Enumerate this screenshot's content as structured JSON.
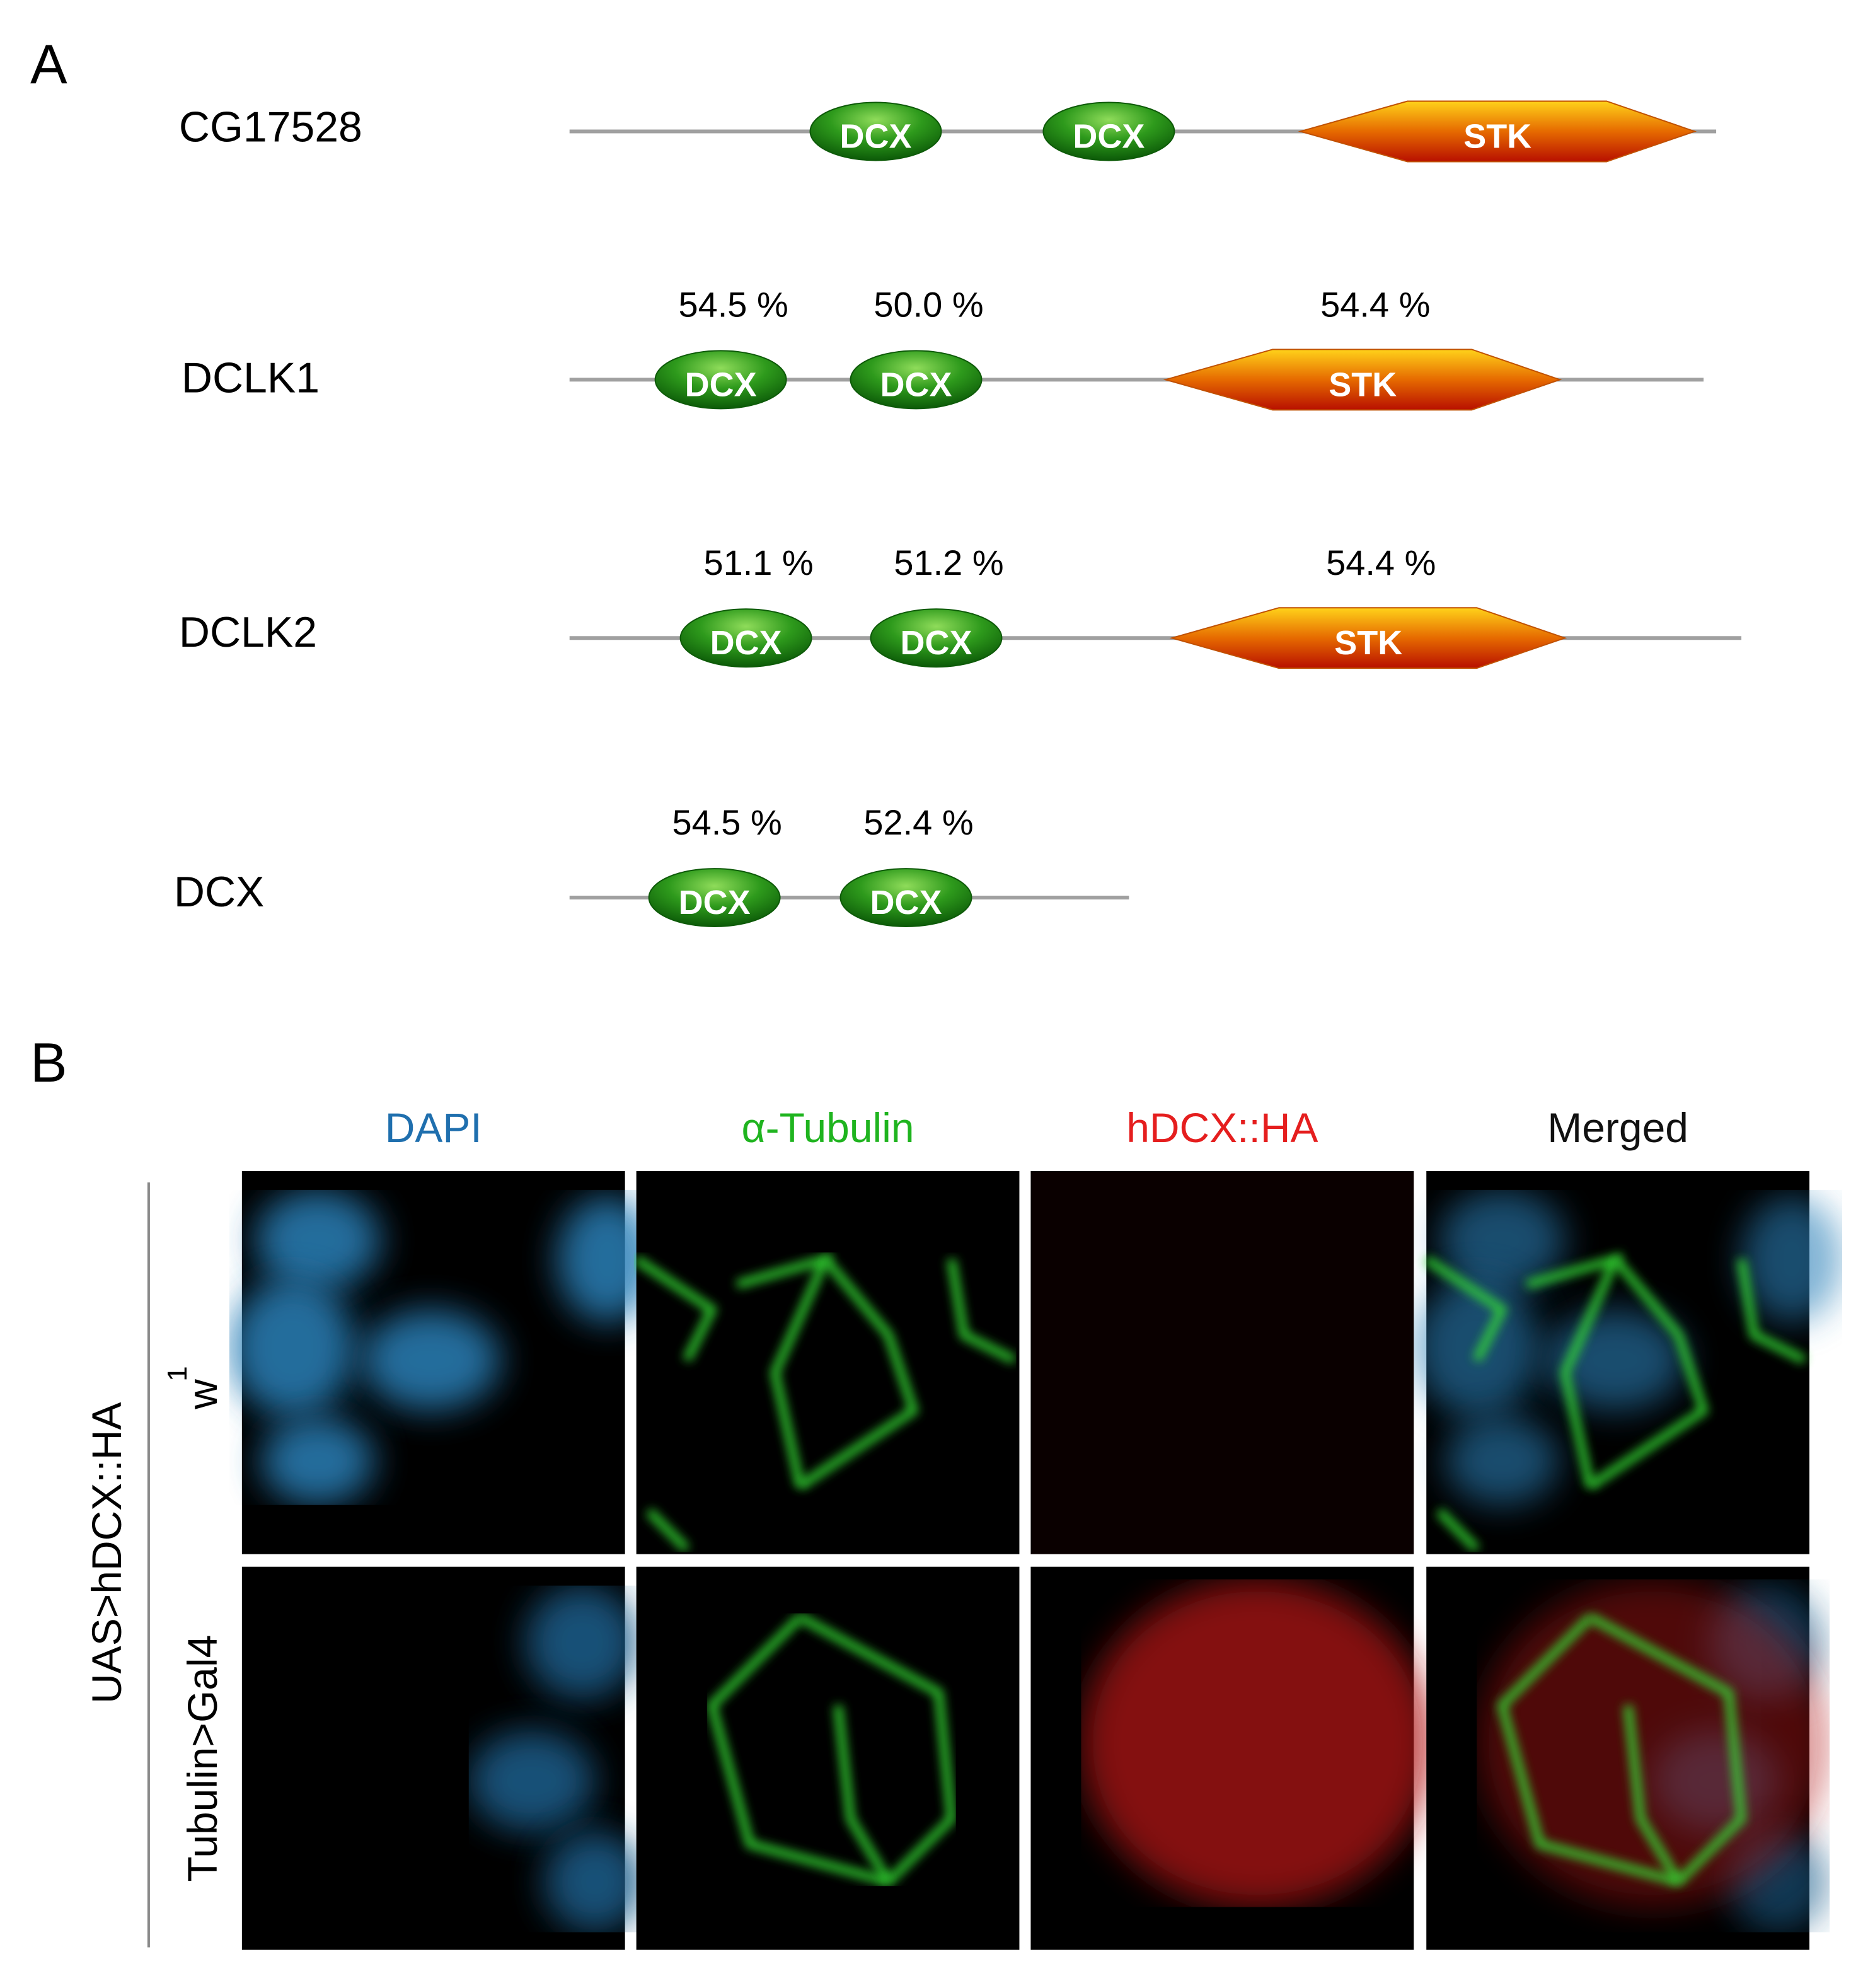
{
  "panel_a": {
    "label": "A",
    "proteins": [
      {
        "name": "CG17528",
        "domains": [
          {
            "label": "DCX"
          },
          {
            "label": "DCX"
          },
          {
            "label": "STK"
          }
        ]
      },
      {
        "name": "DCLK1",
        "domains": [
          {
            "label": "DCX",
            "identity": "54.5 %"
          },
          {
            "label": "DCX",
            "identity": "50.0 %"
          },
          {
            "label": "STK",
            "identity": "54.4 %"
          }
        ]
      },
      {
        "name": "DCLK2",
        "domains": [
          {
            "label": "DCX",
            "identity": "51.1 %"
          },
          {
            "label": "DCX",
            "identity": "51.2 %"
          },
          {
            "label": "STK",
            "identity": "54.4 %"
          }
        ]
      },
      {
        "name": "DCX",
        "domains": [
          {
            "label": "DCX",
            "identity": "54.5 %"
          },
          {
            "label": "DCX",
            "identity": "52.4 %"
          }
        ]
      }
    ]
  },
  "panel_b": {
    "label": "B",
    "channels": [
      "DAPI",
      "α-Tubulin",
      "hDCX::HA",
      "Merged"
    ],
    "row_group": "UAS>hDCX::HA",
    "rows": [
      {
        "label": "w",
        "superscript": "1"
      },
      {
        "label": "Tubulin>Gal4"
      }
    ]
  }
}
